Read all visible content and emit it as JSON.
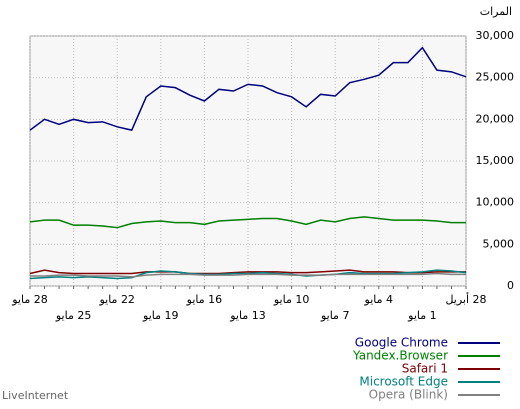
{
  "chart_data": {
    "type": "line",
    "y_label": "المرات",
    "source": "LiveInternet",
    "x_reversed": true,
    "categories": [
      "28 أبريل",
      null,
      null,
      "1 مايو",
      null,
      null,
      "4 مايو",
      null,
      null,
      "7 مايو",
      null,
      null,
      "10 مايو",
      null,
      null,
      "13 مايو",
      null,
      null,
      "16 مايو",
      null,
      null,
      "19 مايو",
      null,
      null,
      "22 مايو",
      null,
      null,
      "25 مايو",
      null,
      null,
      "28 مايو"
    ],
    "series": [
      {
        "name": "Google Chrome",
        "color": "#000080",
        "values": [
          25100,
          25700,
          25900,
          28600,
          26800,
          26800,
          25300,
          24800,
          24400,
          22800,
          23000,
          21500,
          22700,
          23200,
          24000,
          24200,
          23400,
          23600,
          22200,
          22900,
          23800,
          24000,
          22700,
          18700,
          19100,
          19700,
          19600,
          20000,
          19400,
          20000,
          18700
        ]
      },
      {
        "name": "Yandex.Browser",
        "color": "#008000",
        "values": [
          7600,
          7600,
          7800,
          7900,
          7900,
          7900,
          8100,
          8300,
          8100,
          7700,
          7900,
          7400,
          7800,
          8100,
          8100,
          8000,
          7900,
          7800,
          7400,
          7600,
          7600,
          7800,
          7700,
          7500,
          7000,
          7200,
          7300,
          7300,
          7900,
          7900,
          7700
        ]
      },
      {
        "name": "Safari 1",
        "color": "#800000",
        "values": [
          1700,
          1700,
          1700,
          1600,
          1600,
          1700,
          1700,
          1700,
          1900,
          1800,
          1700,
          1600,
          1600,
          1700,
          1700,
          1700,
          1600,
          1500,
          1500,
          1500,
          1700,
          1700,
          1700,
          1500,
          1500,
          1500,
          1500,
          1500,
          1600,
          1900,
          1500
        ]
      },
      {
        "name": "Microsoft Edge",
        "color": "#008080",
        "values": [
          1600,
          1800,
          1900,
          1700,
          1600,
          1500,
          1500,
          1500,
          1600,
          1400,
          1300,
          1200,
          1400,
          1500,
          1600,
          1500,
          1500,
          1400,
          1400,
          1500,
          1700,
          1800,
          1600,
          1000,
          900,
          1000,
          1100,
          1000,
          1100,
          1000,
          900
        ]
      },
      {
        "name": "Opera (Blink)",
        "color": "#808080",
        "values": [
          1400,
          1400,
          1500,
          1400,
          1400,
          1400,
          1400,
          1400,
          1400,
          1400,
          1300,
          1300,
          1300,
          1400,
          1400,
          1400,
          1300,
          1300,
          1300,
          1400,
          1400,
          1400,
          1300,
          1100,
          1200,
          1200,
          1200,
          1300,
          1300,
          1200,
          1200
        ]
      }
    ],
    "ylim": [
      0,
      30000
    ],
    "yticks": [
      0,
      {
        "value": 5000,
        "label": "5,000"
      },
      {
        "value": 10000,
        "label": "10,000"
      },
      {
        "value": 15000,
        "label": "15,000"
      },
      {
        "value": 20000,
        "label": "20,000"
      },
      {
        "value": 25000,
        "label": "25,000"
      },
      {
        "value": 30000,
        "label": "30,000"
      }
    ],
    "grid": true,
    "legend": "bottom-right"
  }
}
